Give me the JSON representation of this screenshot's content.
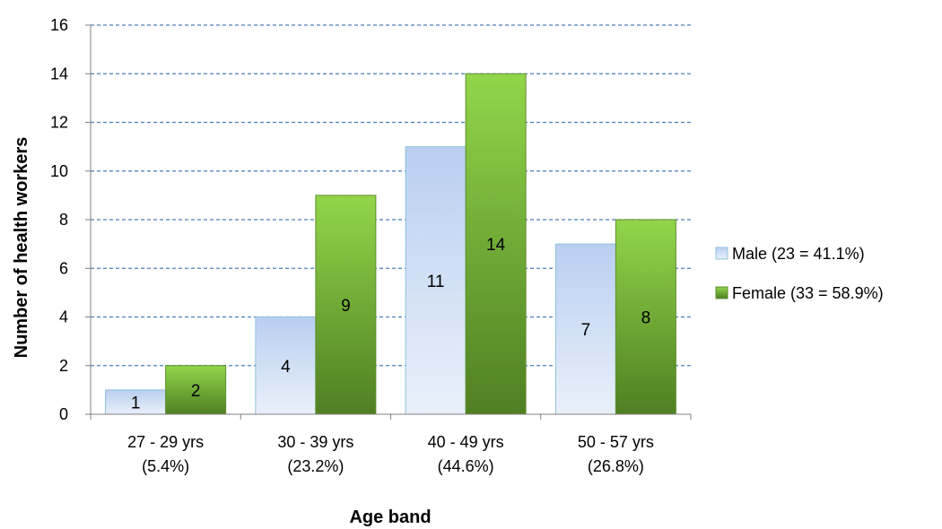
{
  "chart_data": {
    "type": "bar",
    "title": "",
    "xlabel": "Age band",
    "ylabel": "Number of health workers",
    "ylim": [
      0,
      16
    ],
    "yticks": [
      0,
      2,
      4,
      6,
      8,
      10,
      12,
      14,
      16
    ],
    "grid": true,
    "legend_position": "right",
    "categories": [
      [
        "27 - 29 yrs",
        "(5.4%)"
      ],
      [
        "30 - 39 yrs",
        "(23.2%)"
      ],
      [
        "40 - 49 yrs",
        "(44.6%)"
      ],
      [
        "50 - 57 yrs",
        "(26.8%)"
      ]
    ],
    "series": [
      {
        "name": "Male (23 = 41.1%)",
        "values": [
          1,
          4,
          11,
          7
        ],
        "colors": [
          "#b9cff0",
          "#e9f0fa"
        ],
        "border": "#8fc1da"
      },
      {
        "name": "Female (33 = 58.9%)",
        "values": [
          2,
          9,
          14,
          8
        ],
        "colors": [
          "#92d64a",
          "#4f7f23"
        ],
        "border": "#5e8f2c"
      }
    ]
  }
}
